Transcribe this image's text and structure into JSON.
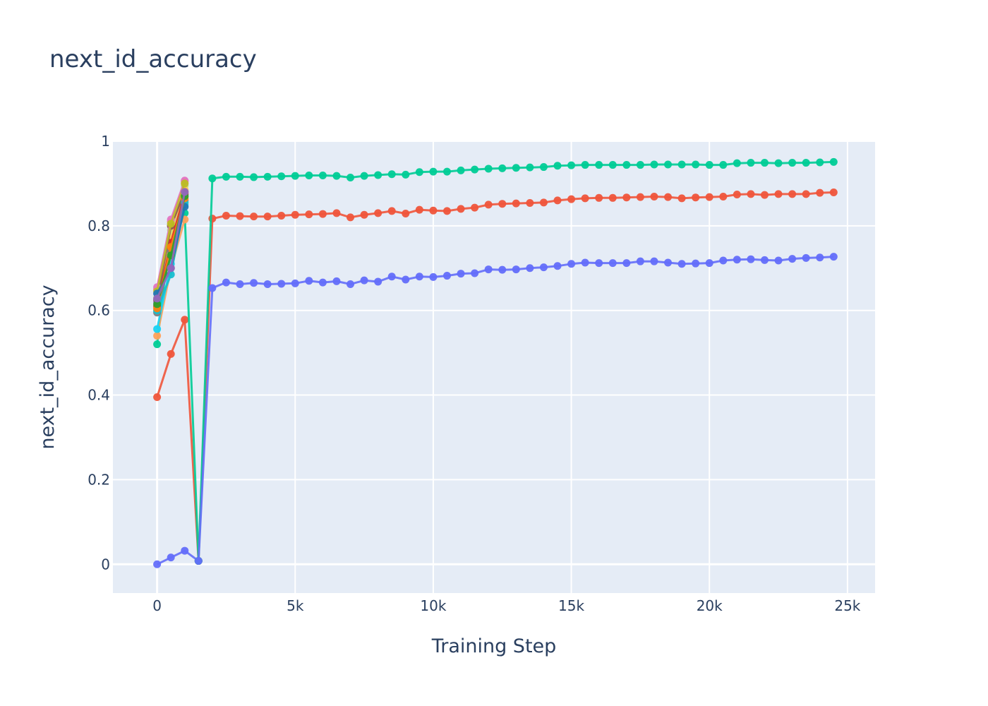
{
  "chart_data": {
    "type": "line",
    "title": "next_id_accuracy",
    "xlabel": "Training Step",
    "ylabel": "next_id_accuracy",
    "xlim": [
      -1600,
      26000
    ],
    "ylim": [
      -0.068,
      1.0
    ],
    "xticks": [
      0,
      5000,
      10000,
      15000,
      20000,
      25000
    ],
    "xtick_labels": [
      "0",
      "5k",
      "10k",
      "15k",
      "20k",
      "25k"
    ],
    "yticks": [
      0,
      0.2,
      0.4,
      0.6,
      0.8,
      1
    ],
    "ytick_labels": [
      "0",
      "0.2",
      "0.4",
      "0.6",
      "0.8",
      "1"
    ],
    "grid": true,
    "legend": "none",
    "series": [
      {
        "color": "#EF553B",
        "x": [
          0,
          500,
          1000,
          1500
        ],
        "y": [
          0.395,
          0.497,
          0.578,
          0.008
        ]
      },
      {
        "color": "#636EFA",
        "x": [
          0,
          500,
          1000,
          1500
        ],
        "y": [
          0.0,
          0.016,
          0.032,
          0.008
        ]
      },
      {
        "color": "#00CC96",
        "x": [
          0,
          500,
          1000,
          1500
        ],
        "y": [
          0.52,
          0.8,
          0.83,
          0.008
        ]
      },
      {
        "color": "#AB63FA",
        "x": [
          0,
          500,
          1000
        ],
        "y": [
          0.62,
          0.78,
          0.87
        ]
      },
      {
        "color": "#FFA15A",
        "x": [
          0,
          500,
          1000
        ],
        "y": [
          0.54,
          0.7,
          0.815
        ]
      },
      {
        "color": "#19D3F3",
        "x": [
          0,
          500,
          1000
        ],
        "y": [
          0.556,
          0.71,
          0.85
        ]
      },
      {
        "color": "#FF6692",
        "x": [
          0,
          500,
          1000
        ],
        "y": [
          0.65,
          0.81,
          0.905
        ]
      },
      {
        "color": "#B6E880",
        "x": [
          0,
          500,
          1000
        ],
        "y": [
          0.63,
          0.79,
          0.895
        ]
      },
      {
        "color": "#FF97FF",
        "x": [
          0,
          500,
          1000
        ],
        "y": [
          0.64,
          0.8,
          0.9
        ]
      },
      {
        "color": "#FECB52",
        "x": [
          0,
          500,
          1000
        ],
        "y": [
          0.6,
          0.77,
          0.885
        ]
      },
      {
        "color": "#D62728",
        "x": [
          0,
          500,
          1000
        ],
        "y": [
          0.61,
          0.76,
          0.875
        ]
      },
      {
        "color": "#8C564B",
        "x": [
          0,
          500,
          1000
        ],
        "y": [
          0.625,
          0.8,
          0.88
        ]
      },
      {
        "color": "#E377C2",
        "x": [
          0,
          500,
          1000
        ],
        "y": [
          0.655,
          0.815,
          0.907
        ]
      },
      {
        "color": "#7F7F7F",
        "x": [
          0,
          500,
          1000
        ],
        "y": [
          0.595,
          0.74,
          0.86
        ]
      },
      {
        "color": "#BCBD22",
        "x": [
          0,
          500,
          1000
        ],
        "y": [
          0.645,
          0.805,
          0.9
        ]
      },
      {
        "color": "#17BECF",
        "x": [
          0,
          500,
          1000
        ],
        "y": [
          0.6,
          0.685,
          0.855
        ]
      },
      {
        "color": "#1F77B4",
        "x": [
          0,
          500,
          1000
        ],
        "y": [
          0.64,
          0.7,
          0.845
        ]
      },
      {
        "color": "#FF7F0E",
        "x": [
          0,
          500,
          1000
        ],
        "y": [
          0.605,
          0.75,
          0.865
        ]
      },
      {
        "color": "#2CA02C",
        "x": [
          0,
          500,
          1000
        ],
        "y": [
          0.615,
          0.73,
          0.87
        ]
      },
      {
        "color": "#9467BD",
        "x": [
          0,
          500,
          1000
        ],
        "y": [
          0.628,
          0.7,
          0.88
        ]
      },
      {
        "color": "#EF553B",
        "x": [
          1500,
          2000,
          2500,
          3000,
          3500,
          4000,
          4500,
          5000,
          5500,
          6000,
          6500,
          7000,
          7500,
          8000,
          8500,
          9000,
          9500,
          10000,
          10500,
          11000,
          11500,
          12000,
          12500,
          13000,
          13500,
          14000,
          14500,
          15000,
          15500,
          16000,
          16500,
          17000,
          17500,
          18000,
          18500,
          19000,
          19500,
          20000,
          20500,
          21000,
          21500,
          22000,
          22500,
          23000,
          23500,
          24000,
          24500
        ],
        "y": [
          0.008,
          0.817,
          0.824,
          0.823,
          0.822,
          0.822,
          0.824,
          0.826,
          0.827,
          0.828,
          0.83,
          0.82,
          0.826,
          0.83,
          0.835,
          0.829,
          0.838,
          0.836,
          0.835,
          0.84,
          0.843,
          0.85,
          0.852,
          0.853,
          0.854,
          0.855,
          0.86,
          0.863,
          0.865,
          0.866,
          0.866,
          0.867,
          0.868,
          0.869,
          0.868,
          0.865,
          0.867,
          0.868,
          0.869,
          0.874,
          0.875,
          0.873,
          0.875,
          0.875,
          0.875,
          0.878,
          0.879
        ]
      },
      {
        "color": "#00CC96",
        "x": [
          1500,
          2000,
          2500,
          3000,
          3500,
          4000,
          4500,
          5000,
          5500,
          6000,
          6500,
          7000,
          7500,
          8000,
          8500,
          9000,
          9500,
          10000,
          10500,
          11000,
          11500,
          12000,
          12500,
          13000,
          13500,
          14000,
          14500,
          15000,
          15500,
          16000,
          16500,
          17000,
          17500,
          18000,
          18500,
          19000,
          19500,
          20000,
          20500,
          21000,
          21500,
          22000,
          22500,
          23000,
          23500,
          24000,
          24500
        ],
        "y": [
          0.008,
          0.912,
          0.916,
          0.916,
          0.915,
          0.916,
          0.917,
          0.918,
          0.919,
          0.919,
          0.918,
          0.914,
          0.918,
          0.92,
          0.922,
          0.921,
          0.927,
          0.928,
          0.928,
          0.931,
          0.933,
          0.935,
          0.936,
          0.937,
          0.938,
          0.939,
          0.942,
          0.943,
          0.944,
          0.944,
          0.944,
          0.944,
          0.944,
          0.945,
          0.945,
          0.945,
          0.945,
          0.944,
          0.944,
          0.948,
          0.949,
          0.949,
          0.948,
          0.949,
          0.949,
          0.95,
          0.951
        ]
      },
      {
        "color": "#636EFA",
        "x": [
          1500,
          2000,
          2500,
          3000,
          3500,
          4000,
          4500,
          5000,
          5500,
          6000,
          6500,
          7000,
          7500,
          8000,
          8500,
          9000,
          9500,
          10000,
          10500,
          11000,
          11500,
          12000,
          12500,
          13000,
          13500,
          14000,
          14500,
          15000,
          15500,
          16000,
          16500,
          17000,
          17500,
          18000,
          18500,
          19000,
          19500,
          20000,
          20500,
          21000,
          21500,
          22000,
          22500,
          23000,
          23500,
          24000,
          24500
        ],
        "y": [
          0.008,
          0.653,
          0.666,
          0.662,
          0.665,
          0.662,
          0.663,
          0.664,
          0.67,
          0.666,
          0.669,
          0.662,
          0.671,
          0.668,
          0.68,
          0.673,
          0.68,
          0.679,
          0.682,
          0.687,
          0.688,
          0.697,
          0.696,
          0.697,
          0.7,
          0.702,
          0.705,
          0.71,
          0.713,
          0.712,
          0.712,
          0.712,
          0.716,
          0.716,
          0.713,
          0.71,
          0.711,
          0.712,
          0.718,
          0.72,
          0.721,
          0.719,
          0.718,
          0.722,
          0.724,
          0.725,
          0.727
        ]
      }
    ]
  }
}
